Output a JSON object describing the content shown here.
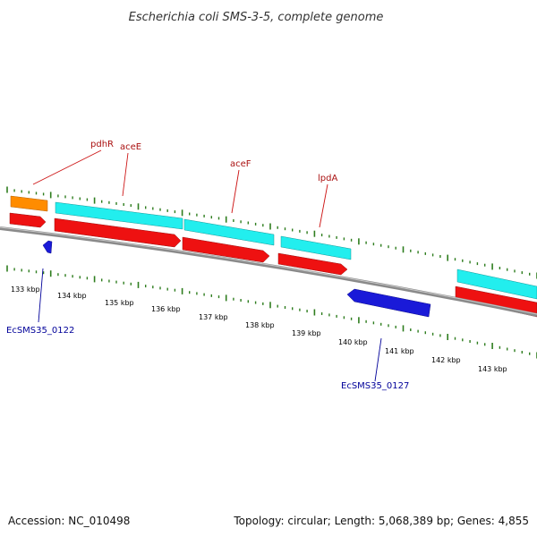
{
  "title": "Escherichia coli SMS-3-5, complete genome",
  "accession": "Accession: NC_010498",
  "summary": "Topology: circular; Length: 5,068,389 bp; Genes: 4,855",
  "colors": {
    "backbone": "#8a8a8a",
    "tick": "#2e7d1e",
    "cds": "#ee1111",
    "gene_cyan": "#22eeee",
    "gene_orange": "#ff8c00",
    "reverse_cds": "#1a1ad8",
    "gene_label": "#aa1111",
    "locus_label": "#000099"
  },
  "gene_labels": [
    "pdhR",
    "aceE",
    "aceF",
    "lpdA"
  ],
  "locus_labels": [
    "EcSMS35_0122",
    "EcSMS35_0127"
  ],
  "kbp_labels": [
    "133 kbp",
    "134 kbp",
    "135 kbp",
    "136 kbp",
    "137 kbp",
    "138 kbp",
    "139 kbp",
    "140 kbp",
    "141 kbp",
    "142 kbp",
    "143 kbp"
  ]
}
